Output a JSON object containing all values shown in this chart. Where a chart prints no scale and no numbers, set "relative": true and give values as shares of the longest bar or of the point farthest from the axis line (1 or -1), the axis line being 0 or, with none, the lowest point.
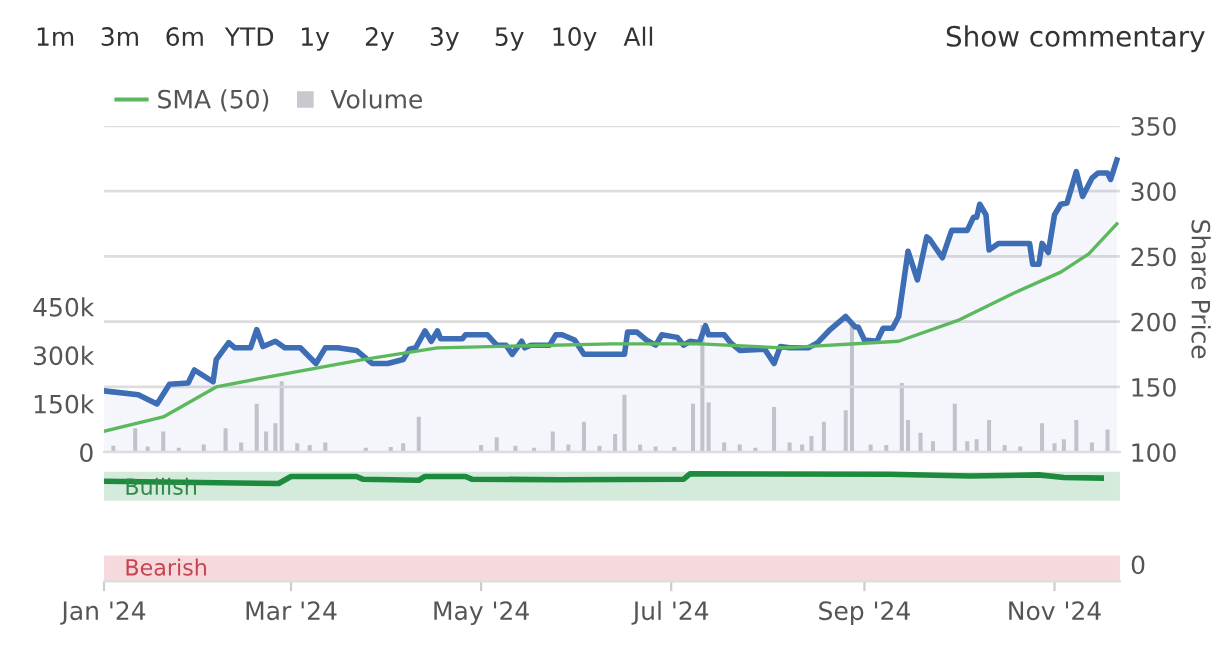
{
  "chart_data": [
    {
      "type": "area",
      "ylabel": "Share Price",
      "ylim": [
        100,
        350
      ],
      "yticks": [
        100,
        150,
        200,
        250,
        300,
        350
      ],
      "y2lim": [
        0,
        1010000
      ],
      "y2ticks": [
        0,
        {
          "value": 150000,
          "label": "150k"
        },
        {
          "value": 300000,
          "label": "300k"
        },
        {
          "value": 450000,
          "label": "450k"
        }
      ],
      "xlim": [
        "2024-01-01",
        "2024-11-22"
      ],
      "tick_labels": "y",
      "grid": "y",
      "legend": "top left",
      "annotations": [
        "1m",
        "3m",
        "6m",
        "YTD",
        "1y",
        "2y",
        "3y",
        "5y",
        "10y",
        "All",
        "Show commentary"
      ],
      "series": [
        {
          "color": "#3d6db5",
          "x": [
            "2024-01-01",
            "2024-01-12",
            "2024-01-18",
            "2024-01-22",
            "2024-01-28",
            "2024-01-30",
            "2024-02-05",
            "2024-02-06",
            "2024-02-10",
            "2024-02-12",
            "2024-02-17",
            "2024-02-19",
            "2024-02-21",
            "2024-02-25",
            "2024-02-28",
            "2024-03-04",
            "2024-03-09",
            "2024-03-12",
            "2024-03-16",
            "2024-03-22",
            "2024-03-27",
            "2024-04-01",
            "2024-04-06",
            "2024-04-08",
            "2024-04-10",
            "2024-04-13",
            "2024-04-15",
            "2024-04-17",
            "2024-04-18",
            "2024-04-25",
            "2024-04-26",
            "2024-05-03",
            "2024-05-06",
            "2024-05-09",
            "2024-05-11",
            "2024-05-14",
            "2024-05-15",
            "2024-05-17",
            "2024-05-23",
            "2024-05-25",
            "2024-05-27",
            "2024-05-31",
            "2024-06-03",
            "2024-06-16",
            "2024-06-17",
            "2024-06-20",
            "2024-06-23",
            "2024-06-26",
            "2024-06-28",
            "2024-07-03",
            "2024-07-05",
            "2024-07-07",
            "2024-07-10",
            "2024-07-12",
            "2024-07-13",
            "2024-07-18",
            "2024-07-20",
            "2024-07-23",
            "2024-07-31",
            "2024-08-03",
            "2024-08-05",
            "2024-08-08",
            "2024-08-14",
            "2024-08-17",
            "2024-08-21",
            "2024-08-26",
            "2024-08-29",
            "2024-08-30",
            "2024-09-01",
            "2024-09-05",
            "2024-09-07",
            "2024-09-10",
            "2024-09-12",
            "2024-09-15",
            "2024-09-18",
            "2024-09-21",
            "2024-09-22",
            "2024-09-26",
            "2024-09-29",
            "2024-10-04",
            "2024-10-06",
            "2024-10-07",
            "2024-10-08",
            "2024-10-10",
            "2024-10-11",
            "2024-10-14",
            "2024-10-24",
            "2024-10-25",
            "2024-10-27",
            "2024-10-28",
            "2024-10-30",
            "2024-11-01",
            "2024-11-03",
            "2024-11-05",
            "2024-11-08",
            "2024-11-10",
            "2024-11-13",
            "2024-11-15",
            "2024-11-18",
            "2024-11-19",
            "2024-11-21"
          ],
          "values": [
            147,
            144,
            137,
            152,
            153,
            163,
            154,
            171,
            184,
            180,
            180,
            194,
            181,
            185,
            180,
            180,
            168,
            180,
            180,
            178,
            168,
            168,
            171,
            179,
            180,
            193,
            185,
            193,
            187,
            187,
            190,
            190,
            182,
            182,
            175,
            185,
            180,
            182,
            182,
            190,
            190,
            186,
            175,
            175,
            192,
            192,
            186,
            182,
            190,
            188,
            182,
            185,
            184,
            197,
            190,
            190,
            184,
            178,
            179,
            168,
            181,
            180,
            180,
            184,
            194,
            204,
            196,
            196,
            186,
            185,
            195,
            195,
            204,
            254,
            232,
            265,
            263,
            249,
            270,
            270,
            280,
            280,
            290,
            282,
            255,
            260,
            260,
            244,
            244,
            260,
            253,
            282,
            290,
            291,
            315,
            296,
            310,
            314,
            314,
            309,
            324
          ]
        },
        {
          "name": "SMA (50)",
          "type": "line",
          "color": "#5cb85c",
          "x": [
            "2024-01-01",
            "2024-01-20",
            "2024-02-06",
            "2024-02-21",
            "2024-03-24",
            "2024-04-17",
            "2024-06-12",
            "2024-07-10",
            "2024-08-06",
            "2024-09-12",
            "2024-10-01",
            "2024-10-19",
            "2024-11-03",
            "2024-11-12",
            "2024-11-21"
          ],
          "values": [
            116,
            127,
            150,
            157,
            171,
            180,
            183,
            183,
            180,
            185,
            201,
            222,
            238,
            252,
            275
          ]
        },
        {
          "name": "Volume",
          "type": "bar",
          "axis": "y2",
          "color": "#c8c9ce",
          "x": [
            "2024-01-04",
            "2024-01-08",
            "2024-01-11",
            "2024-01-15",
            "2024-01-20",
            "2024-01-25",
            "2024-02-02",
            "2024-02-09",
            "2024-02-14",
            "2024-02-19",
            "2024-02-22",
            "2024-02-25",
            "2024-02-27",
            "2024-03-03",
            "2024-03-07",
            "2024-03-12",
            "2024-03-18",
            "2024-03-25",
            "2024-04-02",
            "2024-04-06",
            "2024-04-11",
            "2024-04-20",
            "2024-04-26",
            "2024-05-01",
            "2024-05-06",
            "2024-05-12",
            "2024-05-18",
            "2024-05-24",
            "2024-05-29",
            "2024-06-03",
            "2024-06-08",
            "2024-06-13",
            "2024-06-16",
            "2024-06-21",
            "2024-06-26",
            "2024-07-02",
            "2024-07-08",
            "2024-07-11",
            "2024-07-13",
            "2024-07-18",
            "2024-07-23",
            "2024-07-28",
            "2024-08-03",
            "2024-08-08",
            "2024-08-12",
            "2024-08-15",
            "2024-08-19",
            "2024-08-26",
            "2024-08-28",
            "2024-09-03",
            "2024-09-08",
            "2024-09-13",
            "2024-09-15",
            "2024-09-19",
            "2024-09-23",
            "2024-09-30",
            "2024-10-04",
            "2024-10-07",
            "2024-10-11",
            "2024-10-16",
            "2024-10-21",
            "2024-10-28",
            "2024-11-01",
            "2024-11-04",
            "2024-11-08",
            "2024-11-13",
            "2024-11-18"
          ],
          "values": [
            20000,
            null,
            74000,
            18000,
            64000,
            14000,
            24000,
            74000,
            30000,
            150000,
            64000,
            90000,
            220000,
            28000,
            22000,
            30000,
            null,
            14000,
            16000,
            28000,
            110000,
            null,
            null,
            22000,
            46000,
            20000,
            14000,
            64000,
            24000,
            94000,
            20000,
            56000,
            178000,
            24000,
            18000,
            16000,
            150000,
            394000,
            154000,
            30000,
            24000,
            14000,
            140000,
            30000,
            24000,
            50000,
            94000,
            130000,
            394000,
            24000,
            22000,
            214000,
            100000,
            60000,
            34000,
            150000,
            34000,
            40000,
            100000,
            22000,
            18000,
            90000,
            28000,
            40000,
            100000,
            30000,
            70000
          ]
        }
      ]
    },
    {
      "type": "line",
      "relative": true,
      "xlim": [
        "2024-01-01",
        "2024-11-22"
      ],
      "xticks": [
        {
          "value": "2024-01-01",
          "label": "Jan '24"
        },
        {
          "value": "2024-03-01",
          "label": "Mar '24"
        },
        {
          "value": "2024-05-01",
          "label": "May '24"
        },
        {
          "value": "2024-07-01",
          "label": "Jul '24"
        },
        {
          "value": "2024-09-01",
          "label": "Sep '24"
        },
        {
          "value": "2024-11-01",
          "label": "Nov '24"
        }
      ],
      "tick_labels": "x",
      "annotations": [
        "0"
      ],
      "bands": [
        {
          "axis": "y",
          "from": 0.75,
          "to": 1.02,
          "label": "Bullish",
          "color": "#d4eadb"
        },
        {
          "axis": "y",
          "from": 0,
          "to": 0.24,
          "label": "Bearish",
          "color": "#f5d9dc"
        }
      ],
      "series": [
        {
          "color": "#1e8a3e",
          "x": [
            "2024-01-01",
            "2024-02-26",
            "2024-03-01",
            "2024-03-22",
            "2024-03-24",
            "2024-04-11",
            "2024-04-13",
            "2024-04-26",
            "2024-04-28",
            "2024-05-26",
            "2024-07-05",
            "2024-07-07",
            "2024-09-09",
            "2024-10-05",
            "2024-10-27",
            "2024-11-04",
            "2024-11-16"
          ],
          "values": [
            0.93,
            0.91,
            0.975,
            0.975,
            0.95,
            0.94,
            0.975,
            0.975,
            0.95,
            0.945,
            0.95,
            1.0,
            0.995,
            0.98,
            0.99,
            0.965,
            0.96
          ]
        }
      ]
    }
  ]
}
